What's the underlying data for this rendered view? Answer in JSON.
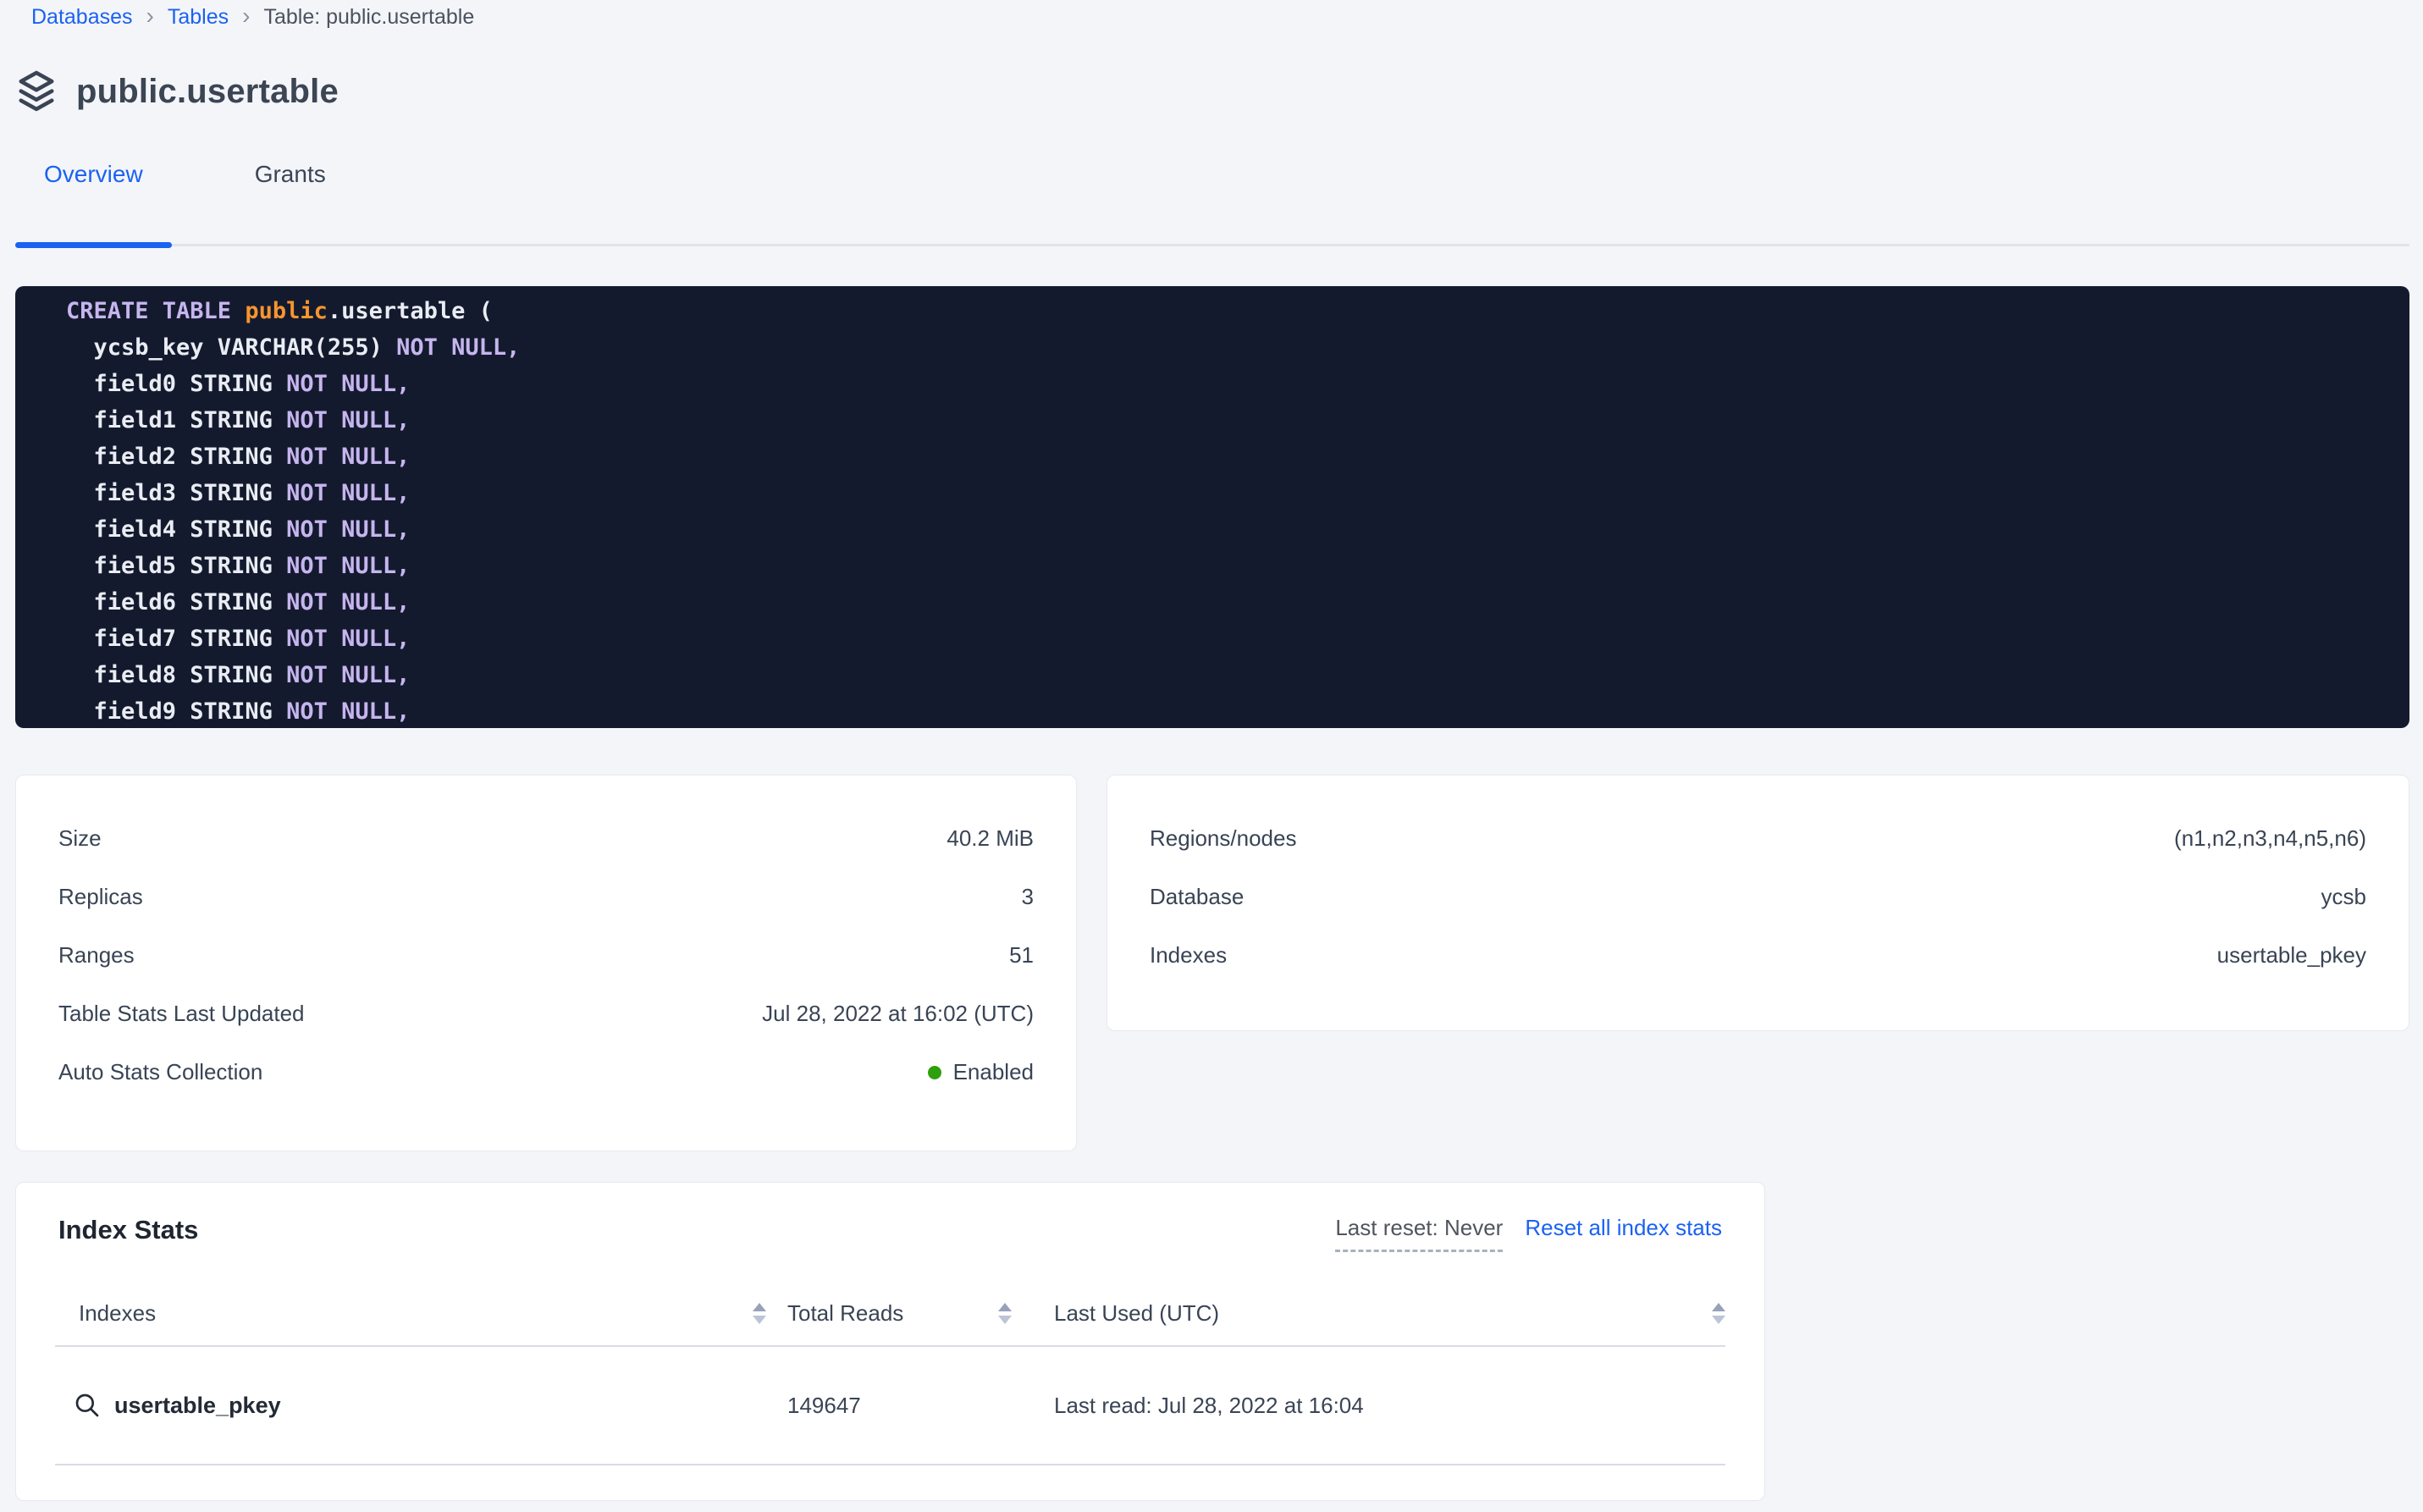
{
  "breadcrumb": {
    "links": [
      "Databases",
      "Tables"
    ],
    "current": "Table: public.usertable"
  },
  "icons": {
    "breadcrumb_chevron": "›"
  },
  "header": {
    "title": "public.usertable",
    "icon": "layers-icon"
  },
  "tabs": [
    {
      "label": "Overview",
      "active": true
    },
    {
      "label": "Grants",
      "active": false
    }
  ],
  "sql_block": {
    "lines": [
      [
        {
          "t": "CREATE TABLE ",
          "c": "kw"
        },
        {
          "t": "public",
          "c": "lit"
        },
        {
          "t": ".usertable (",
          "c": "tx"
        }
      ],
      [
        {
          "t": "  ycsb_key VARCHAR(255) ",
          "c": "tx"
        },
        {
          "t": "NOT NULL,",
          "c": "kw"
        }
      ],
      [
        {
          "t": "  field0 STRING ",
          "c": "tx"
        },
        {
          "t": "NOT NULL,",
          "c": "kw"
        }
      ],
      [
        {
          "t": "  field1 STRING ",
          "c": "tx"
        },
        {
          "t": "NOT NULL,",
          "c": "kw"
        }
      ],
      [
        {
          "t": "  field2 STRING ",
          "c": "tx"
        },
        {
          "t": "NOT NULL,",
          "c": "kw"
        }
      ],
      [
        {
          "t": "  field3 STRING ",
          "c": "tx"
        },
        {
          "t": "NOT NULL,",
          "c": "kw"
        }
      ],
      [
        {
          "t": "  field4 STRING ",
          "c": "tx"
        },
        {
          "t": "NOT NULL,",
          "c": "kw"
        }
      ],
      [
        {
          "t": "  field5 STRING ",
          "c": "tx"
        },
        {
          "t": "NOT NULL,",
          "c": "kw"
        }
      ],
      [
        {
          "t": "  field6 STRING ",
          "c": "tx"
        },
        {
          "t": "NOT NULL,",
          "c": "kw"
        }
      ],
      [
        {
          "t": "  field7 STRING ",
          "c": "tx"
        },
        {
          "t": "NOT NULL,",
          "c": "kw"
        }
      ],
      [
        {
          "t": "  field8 STRING ",
          "c": "tx"
        },
        {
          "t": "NOT NULL,",
          "c": "kw"
        }
      ],
      [
        {
          "t": "  field9 STRING ",
          "c": "tx"
        },
        {
          "t": "NOT NULL,",
          "c": "kw"
        }
      ]
    ]
  },
  "stats_cards": {
    "left": {
      "rows": [
        {
          "label": "Size",
          "value": "40.2 MiB"
        },
        {
          "label": "Replicas",
          "value": "3"
        },
        {
          "label": "Ranges",
          "value": "51"
        },
        {
          "label": "Table Stats Last Updated",
          "value": "Jul 28, 2022 at 16:02 (UTC)"
        },
        {
          "label": "Auto Stats Collection",
          "value": "Enabled",
          "dot": "#2ea00f"
        }
      ]
    },
    "right": {
      "rows": [
        {
          "label": "Regions/nodes",
          "value": "(n1,n2,n3,n4,n5,n6)"
        },
        {
          "label": "Database",
          "value": "ycsb"
        },
        {
          "label": "Indexes",
          "value": "usertable_pkey"
        }
      ]
    }
  },
  "index_stats": {
    "title": "Index Stats",
    "last_reset_label": "Last reset: Never",
    "reset_link": "Reset all index stats",
    "columns": [
      "Indexes",
      "Total Reads",
      "Last Used (UTC)"
    ],
    "rows": [
      {
        "index_name": "usertable_pkey",
        "total_reads": "149647",
        "last_used": "Last read: Jul 28, 2022 at 16:04"
      }
    ]
  },
  "colors": {
    "accent_blue": "#1a62f2",
    "status_green": "#2ea00f",
    "code_background": "#141a2e",
    "code_keyword": "#c6b5ee",
    "code_schema": "#f7952e",
    "code_text": "#e9edf3",
    "page_background": "#f4f5f9"
  }
}
